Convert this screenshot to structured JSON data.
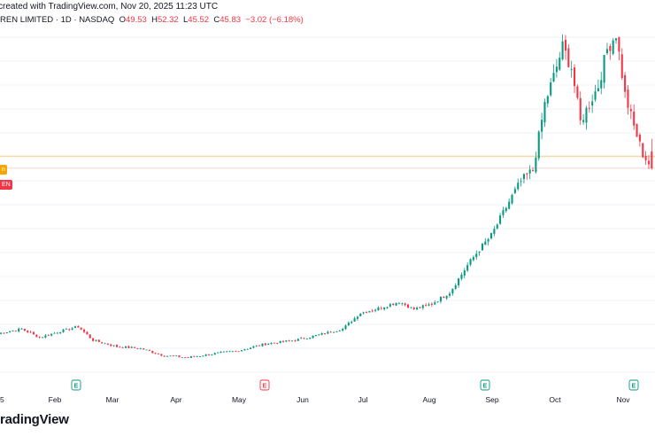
{
  "header": {
    "created_text": "created with TradingView.com, Nov 20, 2025 11:23 UTC",
    "symbol_text": "REN LIMITED · 1D · NASDAQ",
    "o_label": "O",
    "o_value": "49.53",
    "h_label": "H",
    "h_value": "52.32",
    "l_label": "L",
    "l_value": "45.52",
    "c_label": "C",
    "c_value": "45.83",
    "change_value": "−3.02 (−6.18%)"
  },
  "tags": {
    "orange_tag": "n",
    "red_tag": "EN"
  },
  "footer": {
    "logo_text": "radingView"
  },
  "colors": {
    "up": "#089981",
    "down": "#f23645",
    "orange": "#f7a600",
    "grid": "#f0f3fa",
    "axis_text": "#131722",
    "earnings": "#089981",
    "earnings_neg": "#f23645"
  },
  "chart_data": {
    "type": "candlestick",
    "symbol": "REN LIMITED",
    "interval": "1D",
    "exchange": "NASDAQ",
    "x_tick_labels": [
      "Feb",
      "Mar",
      "Apr",
      "May",
      "Jun",
      "Jul",
      "Aug",
      "Sep",
      "Oct",
      "Nov"
    ],
    "left_partial_tick": "5",
    "earnings_markers": [
      {
        "month": "Feb",
        "label": "E",
        "color": "#089981"
      },
      {
        "month": "May",
        "label": "E",
        "color": "#f23645"
      },
      {
        "month": "Aug",
        "label": "E",
        "color": "#089981"
      },
      {
        "month": "Nov",
        "label": "E",
        "color": "#089981"
      }
    ],
    "last_ohlc": {
      "open": 49.53,
      "high": 52.32,
      "low": 45.52,
      "close": 45.83,
      "change": -3.02,
      "change_pct": -6.18
    },
    "price_lines": [
      {
        "name": "orange",
        "value": 48.5
      },
      {
        "name": "current",
        "value": 45.83
      }
    ],
    "ylim": [
      0,
      77
    ],
    "close_anchors": [
      {
        "i": 0,
        "c": 9.5
      },
      {
        "i": 8,
        "c": 10.5
      },
      {
        "i": 14,
        "c": 8.6
      },
      {
        "i": 20,
        "c": 9.8
      },
      {
        "i": 27,
        "c": 11.0
      },
      {
        "i": 32,
        "c": 8.0
      },
      {
        "i": 40,
        "c": 6.6
      },
      {
        "i": 48,
        "c": 6.2
      },
      {
        "i": 56,
        "c": 4.6
      },
      {
        "i": 64,
        "c": 4.2
      },
      {
        "i": 72,
        "c": 5.0
      },
      {
        "i": 80,
        "c": 5.6
      },
      {
        "i": 90,
        "c": 7.2
      },
      {
        "i": 100,
        "c": 8.0
      },
      {
        "i": 108,
        "c": 9.2
      },
      {
        "i": 116,
        "c": 10.5
      },
      {
        "i": 122,
        "c": 14.0
      },
      {
        "i": 128,
        "c": 15.0
      },
      {
        "i": 135,
        "c": 16.5
      },
      {
        "i": 140,
        "c": 14.8
      },
      {
        "i": 146,
        "c": 16.0
      },
      {
        "i": 152,
        "c": 18.5
      },
      {
        "i": 158,
        "c": 24.5
      },
      {
        "i": 162,
        "c": 28.0
      },
      {
        "i": 166,
        "c": 31.0
      },
      {
        "i": 172,
        "c": 38.5
      },
      {
        "i": 176,
        "c": 43.0
      },
      {
        "i": 180,
        "c": 45.5
      },
      {
        "i": 184,
        "c": 60.0
      },
      {
        "i": 187,
        "c": 66.0
      },
      {
        "i": 190,
        "c": 72.5
      },
      {
        "i": 193,
        "c": 68.0
      },
      {
        "i": 196,
        "c": 56.0
      },
      {
        "i": 199,
        "c": 60.0
      },
      {
        "i": 202,
        "c": 64.0
      },
      {
        "i": 205,
        "c": 72.0
      },
      {
        "i": 208,
        "c": 75.5
      },
      {
        "i": 211,
        "c": 62.0
      },
      {
        "i": 214,
        "c": 55.0
      },
      {
        "i": 217,
        "c": 49.0
      },
      {
        "i": 220,
        "c": 45.83
      }
    ]
  }
}
